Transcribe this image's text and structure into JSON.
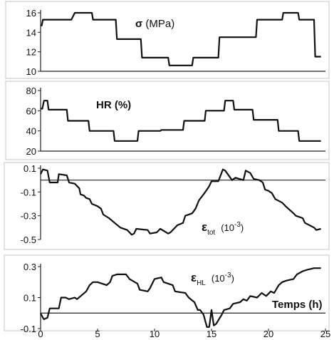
{
  "chart_data": [
    {
      "type": "line",
      "panel_id": "sigma",
      "title_parts": {
        "main": "σ",
        "rest": " (MPa)"
      },
      "ylim": [
        10,
        16
      ],
      "yticks": [
        10,
        12,
        14,
        16
      ],
      "xlim": [
        0,
        25
      ],
      "grid": false,
      "series": [
        {
          "x": [
            0,
            0.1,
            0.2,
            2.7,
            3.0,
            4.5,
            4.6,
            6.6,
            6.7,
            8.8,
            8.9,
            11.2,
            11.3,
            13.3,
            13.4,
            15.6,
            15.7,
            18.9,
            19.0,
            21.2,
            21.3,
            22.6,
            22.7,
            24.0,
            24.1,
            24.6
          ],
          "y": [
            14.7,
            14.7,
            15.3,
            15.3,
            16.0,
            16.0,
            15.3,
            15.3,
            13.3,
            13.3,
            11.4,
            11.4,
            10.6,
            10.6,
            11.4,
            11.4,
            13.5,
            13.5,
            15.3,
            15.3,
            16.0,
            16.0,
            15.3,
            15.3,
            11.5,
            11.5
          ]
        }
      ]
    },
    {
      "type": "line",
      "panel_id": "hr",
      "title": "HR (%)",
      "ylim": [
        20,
        80
      ],
      "yticks": [
        20,
        40,
        60,
        80
      ],
      "xlim": [
        0,
        25
      ],
      "grid": false,
      "series": [
        {
          "x": [
            0,
            0.15,
            0.3,
            0.6,
            0.7,
            2.3,
            2.4,
            4.2,
            4.3,
            6.4,
            6.5,
            8.5,
            8.6,
            10.5,
            10.6,
            12.5,
            12.6,
            14.4,
            14.5,
            16.1,
            16.2,
            16.9,
            17.0,
            18.6,
            18.7,
            20.8,
            20.9,
            22.6,
            22.7,
            24.6
          ],
          "y": [
            62,
            62,
            70,
            70,
            61,
            61,
            50,
            50,
            40,
            40,
            30,
            30,
            40,
            40,
            41,
            41,
            50,
            50,
            60,
            60,
            70,
            70,
            61,
            61,
            51,
            51,
            40,
            40,
            30,
            30
          ]
        }
      ]
    },
    {
      "type": "line",
      "panel_id": "etot",
      "title_parts": {
        "main": "ε",
        "sub": "tot",
        "rest": "(10",
        "sup": "-3",
        "close": ")"
      },
      "ylim": [
        -0.5,
        0.1
      ],
      "yticks": [
        0.1,
        -0.1,
        -0.3,
        -0.5
      ],
      "xlim": [
        0,
        25
      ],
      "zero_line": true,
      "grid": false,
      "series": [
        {
          "x": [
            0,
            0.2,
            0.6,
            0.8,
            1.5,
            1.6,
            2.3,
            2.5,
            3.0,
            3.4,
            3.5,
            3.8,
            4.0,
            4.3,
            4.5,
            5.0,
            5.3,
            5.5,
            6.0,
            6.5,
            7.0,
            7.6,
            8.0,
            8.2,
            8.4,
            9.4,
            9.6,
            10.2,
            10.5,
            11.2,
            11.4,
            12.0,
            12.5,
            12.7,
            13.3,
            13.6,
            13.9,
            14.3,
            14.6,
            14.8,
            15.0,
            15.6,
            15.8,
            16.0,
            16.2,
            16.8,
            17.1,
            17.8,
            18.0,
            18.4,
            18.7,
            19.2,
            19.5,
            19.7,
            20.0,
            20.3,
            20.6,
            21.2,
            21.5,
            22.2,
            22.4,
            23.0,
            23.2,
            23.6,
            24.0,
            24.2,
            24.6
          ],
          "y": [
            0.05,
            0.09,
            0.08,
            -0.02,
            -0.02,
            0.05,
            0.04,
            -0.02,
            -0.03,
            -0.07,
            -0.12,
            -0.13,
            -0.15,
            -0.16,
            -0.2,
            -0.22,
            -0.24,
            -0.29,
            -0.32,
            -0.36,
            -0.4,
            -0.42,
            -0.46,
            -0.45,
            -0.41,
            -0.42,
            -0.45,
            -0.44,
            -0.41,
            -0.45,
            -0.44,
            -0.38,
            -0.36,
            -0.3,
            -0.28,
            -0.24,
            -0.17,
            -0.12,
            -0.08,
            -0.05,
            -0.01,
            -0.01,
            0.04,
            0.09,
            0.08,
            0.0,
            0.02,
            0.0,
            0.08,
            0.06,
            0.01,
            0.0,
            -0.02,
            -0.08,
            -0.09,
            -0.11,
            -0.16,
            -0.19,
            -0.22,
            -0.28,
            -0.3,
            -0.32,
            -0.36,
            -0.38,
            -0.4,
            -0.42,
            -0.41
          ]
        }
      ]
    },
    {
      "type": "line",
      "panel_id": "ehl",
      "title_parts": {
        "main": "ε",
        "sub": "HL",
        "rest": "(10",
        "sup": "-3",
        "close": ")"
      },
      "xlabel": "Temps (h)",
      "ylim": [
        -0.1,
        0.3
      ],
      "yticks": [
        0.3,
        0.1,
        -0.1
      ],
      "xlim": [
        0,
        25
      ],
      "xticks": [
        0,
        5,
        10,
        15,
        20,
        25
      ],
      "zero_line": true,
      "grid": false,
      "series": [
        {
          "x": [
            0,
            0.2,
            0.3,
            0.6,
            0.8,
            1.6,
            1.8,
            2.2,
            2.5,
            3.0,
            3.2,
            4.0,
            4.3,
            4.6,
            5.0,
            5.8,
            6.1,
            6.3,
            6.7,
            7.5,
            7.8,
            8.5,
            8.7,
            9.4,
            9.6,
            10.0,
            10.6,
            10.8,
            11.6,
            11.8,
            12.7,
            13.0,
            13.5,
            13.8,
            14.0,
            14.3,
            14.6,
            14.8,
            15.0,
            15.2,
            15.4,
            15.9,
            16.1,
            16.6,
            16.9,
            17.5,
            17.8,
            18.1,
            18.4,
            19.0,
            19.4,
            19.8,
            20.2,
            20.5,
            20.9,
            21.2,
            21.6,
            22.2,
            22.5,
            23.0,
            23.4,
            24.0,
            24.6
          ],
          "y": [
            0.0,
            -0.03,
            -0.04,
            -0.03,
            0.03,
            0.03,
            0.1,
            0.1,
            0.09,
            0.1,
            0.09,
            0.14,
            0.18,
            0.2,
            0.2,
            0.18,
            0.2,
            0.24,
            0.25,
            0.25,
            0.22,
            0.19,
            0.15,
            0.14,
            0.16,
            0.22,
            0.23,
            0.2,
            0.18,
            0.14,
            0.13,
            0.1,
            0.07,
            0.02,
            0.02,
            -0.01,
            -0.09,
            -0.09,
            0.02,
            -0.08,
            -0.07,
            -0.01,
            0.02,
            0.03,
            0.06,
            0.07,
            0.09,
            0.08,
            0.11,
            0.1,
            0.13,
            0.11,
            0.14,
            0.13,
            0.18,
            0.2,
            0.21,
            0.22,
            0.25,
            0.27,
            0.28,
            0.29,
            0.29
          ]
        }
      ]
    }
  ]
}
